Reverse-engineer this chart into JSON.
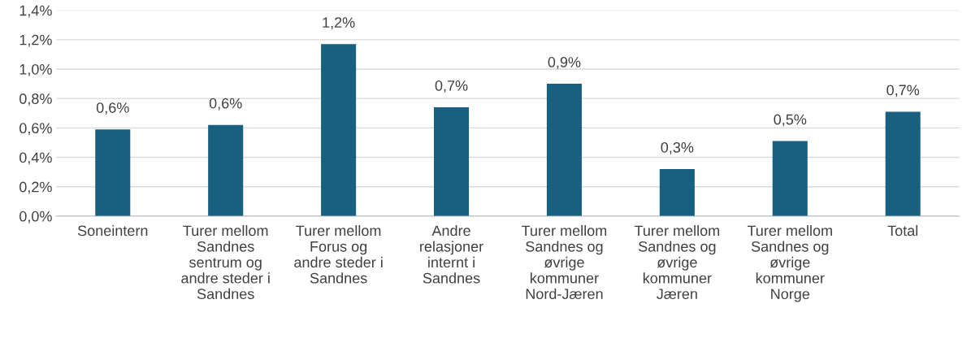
{
  "chart_data": {
    "type": "bar",
    "categories": [
      "Soneintern",
      "Turer mellom\nSandnes\nsentrum og\nandre steder i\nSandnes",
      "Turer mellom\nForus og\nandre steder i\nSandnes",
      "Andre\nrelasjoner\ninternt i\nSandnes",
      "Turer mellom\nSandnes og\nøvrige\nkommuner\nNord-Jæren",
      "Turer mellom\nSandnes og\nøvrige\nkommuner\nJæren",
      "Turer mellom\nSandnes og\nøvrige\nkommuner\nNorge",
      "Total"
    ],
    "values": [
      0.59,
      0.62,
      1.17,
      0.74,
      0.9,
      0.32,
      0.51,
      0.71
    ],
    "value_labels": [
      "0,6%",
      "0,6%",
      "1,2%",
      "0,7%",
      "0,9%",
      "0,3%",
      "0,5%",
      "0,7%"
    ],
    "color": "#17607f",
    "ylim": [
      0,
      1.4
    ],
    "yticks": [
      {
        "value": 0,
        "label": "0,0%"
      },
      {
        "value": 0.2,
        "label": "0,2%"
      },
      {
        "value": 0.4,
        "label": "0,4%"
      },
      {
        "value": 0.6,
        "label": "0,6%"
      },
      {
        "value": 0.8,
        "label": "0,8%"
      },
      {
        "value": 1.0,
        "label": "1,0%"
      },
      {
        "value": 1.2,
        "label": "1,2%"
      },
      {
        "value": 1.4,
        "label": "1,4%"
      }
    ],
    "grid": "y"
  }
}
